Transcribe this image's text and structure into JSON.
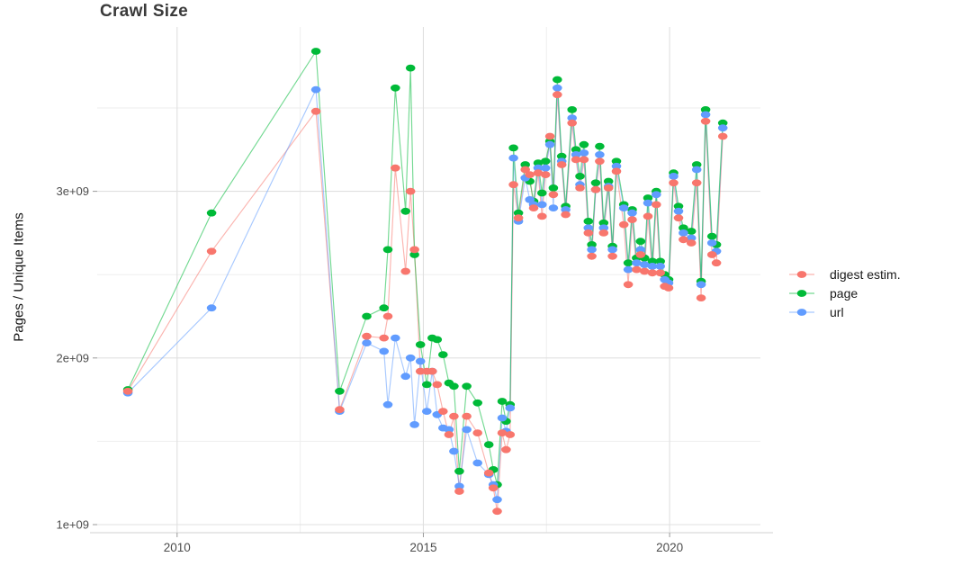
{
  "title": "Crawl Size",
  "y_axis": {
    "label": "Pages / Unique Items",
    "ticks": [
      {
        "label": "1e+09",
        "value": 1
      },
      {
        "label": "2e+09",
        "value": 2
      },
      {
        "label": "3e+09",
        "value": 3
      }
    ]
  },
  "x_axis": {
    "ticks": [
      {
        "label": "2010",
        "value": 2010
      },
      {
        "label": "2015",
        "value": 2015
      },
      {
        "label": "2020",
        "value": 2020
      }
    ]
  },
  "legend": [
    {
      "label": "digest estim.",
      "series": "digest",
      "color": "#F8766D"
    },
    {
      "label": "page",
      "series": "page",
      "color": "#00BA38"
    },
    {
      "label": "url",
      "series": "url",
      "color": "#619CFF"
    }
  ],
  "colors": {
    "digest": "#F8766D",
    "page": "#00BA38",
    "url": "#619CFF",
    "grid_major": "#e0e0e0",
    "grid_minor": "#eeeeee",
    "axis_line": "#d9d9d9",
    "tick_mark": "#999999",
    "tick_text": "#4d4d4d"
  },
  "chart_data": {
    "type": "line",
    "title": "Crawl Size",
    "xlabel": "",
    "ylabel": "Pages / Unique Items",
    "x_unit": "year (decimal, one point per crawl)",
    "y_unit": "count, billions (1e9)",
    "xlim": [
      2008.4,
      2021.85
    ],
    "ylim": [
      0.95,
      3.99
    ],
    "grid": {
      "x_major": [
        2010,
        2015,
        2020
      ],
      "x_minor": [
        2012.5,
        2017.5
      ],
      "y_major": [
        1,
        2,
        3
      ],
      "y_minor": [
        1.5,
        2.5,
        3.5
      ]
    },
    "legend_position": "right",
    "x": [
      2009.0,
      2010.7,
      2012.82,
      2013.3,
      2013.85,
      2014.2,
      2014.28,
      2014.43,
      2014.64,
      2014.74,
      2014.82,
      2014.94,
      2015.07,
      2015.18,
      2015.28,
      2015.4,
      2015.52,
      2015.62,
      2015.73,
      2015.88,
      2016.1,
      2016.33,
      2016.42,
      2016.5,
      2016.6,
      2016.68,
      2016.76,
      2016.83,
      2016.93,
      2017.07,
      2017.16,
      2017.24,
      2017.33,
      2017.41,
      2017.48,
      2017.57,
      2017.64,
      2017.72,
      2017.81,
      2017.89,
      2018.02,
      2018.1,
      2018.18,
      2018.26,
      2018.35,
      2018.42,
      2018.5,
      2018.58,
      2018.66,
      2018.76,
      2018.84,
      2018.92,
      2019.07,
      2019.16,
      2019.24,
      2019.33,
      2019.41,
      2019.49,
      2019.56,
      2019.65,
      2019.73,
      2019.81,
      2019.9,
      2019.98,
      2020.08,
      2020.18,
      2020.28,
      2020.44,
      2020.55,
      2020.64,
      2020.73,
      2020.86,
      2020.95,
      2021.08
    ],
    "series": [
      {
        "name": "digest estim.",
        "key": "digest",
        "color": "#F8766D",
        "values": [
          1.8,
          2.64,
          3.48,
          1.69,
          2.13,
          2.12,
          2.25,
          3.14,
          2.52,
          3.0,
          2.65,
          1.92,
          1.92,
          1.92,
          1.84,
          1.68,
          1.54,
          1.65,
          1.2,
          1.65,
          1.55,
          1.31,
          1.22,
          1.08,
          1.55,
          1.45,
          1.54,
          3.04,
          2.84,
          3.13,
          3.1,
          2.9,
          3.11,
          2.85,
          3.1,
          3.33,
          2.98,
          3.58,
          3.16,
          2.86,
          3.41,
          3.19,
          3.02,
          3.19,
          2.75,
          2.61,
          3.01,
          3.18,
          2.75,
          3.02,
          2.61,
          3.12,
          2.8,
          2.44,
          2.83,
          2.53,
          2.62,
          2.52,
          2.85,
          2.51,
          2.92,
          2.51,
          2.43,
          2.42,
          3.05,
          2.84,
          2.71,
          2.69,
          3.05,
          2.36,
          3.42,
          2.62,
          2.57,
          3.33
        ]
      },
      {
        "name": "page",
        "key": "page",
        "color": "#00BA38",
        "values": [
          1.81,
          2.87,
          3.84,
          1.8,
          2.25,
          2.3,
          2.65,
          3.62,
          2.88,
          3.74,
          2.62,
          2.08,
          1.84,
          2.12,
          2.11,
          2.02,
          1.85,
          1.83,
          1.32,
          1.83,
          1.73,
          1.48,
          1.33,
          1.24,
          1.74,
          1.62,
          1.72,
          3.26,
          2.87,
          3.16,
          3.06,
          2.94,
          3.17,
          2.99,
          3.18,
          3.3,
          3.02,
          3.67,
          3.21,
          2.91,
          3.49,
          3.25,
          3.09,
          3.28,
          2.82,
          2.68,
          3.05,
          3.27,
          2.81,
          3.06,
          2.67,
          3.18,
          2.92,
          2.57,
          2.89,
          2.6,
          2.7,
          2.6,
          2.96,
          2.58,
          3.0,
          2.58,
          2.5,
          2.47,
          3.11,
          2.91,
          2.78,
          2.76,
          3.16,
          2.46,
          3.49,
          2.73,
          2.68,
          3.41
        ]
      },
      {
        "name": "url",
        "key": "url",
        "color": "#619CFF",
        "values": [
          1.79,
          2.3,
          3.61,
          1.68,
          2.09,
          2.04,
          1.72,
          2.12,
          1.89,
          2.0,
          1.6,
          1.98,
          1.68,
          1.92,
          1.66,
          1.58,
          1.57,
          1.44,
          1.23,
          1.57,
          1.37,
          1.3,
          1.24,
          1.15,
          1.64,
          1.56,
          1.7,
          3.2,
          2.82,
          3.08,
          2.95,
          2.92,
          3.14,
          2.92,
          3.14,
          3.28,
          2.9,
          3.62,
          3.18,
          2.89,
          3.44,
          3.22,
          3.04,
          3.23,
          2.78,
          2.65,
          3.01,
          3.22,
          2.78,
          3.03,
          2.65,
          3.15,
          2.9,
          2.53,
          2.87,
          2.57,
          2.65,
          2.56,
          2.93,
          2.55,
          2.98,
          2.55,
          2.47,
          2.45,
          3.09,
          2.88,
          2.75,
          2.72,
          3.13,
          2.44,
          3.46,
          2.69,
          2.64,
          3.38
        ]
      }
    ]
  }
}
